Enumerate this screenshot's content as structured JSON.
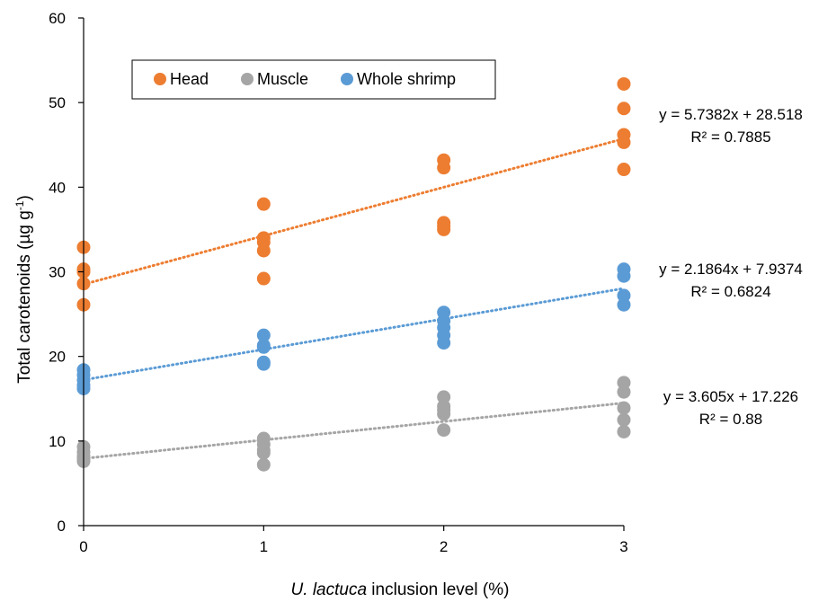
{
  "chart_data": {
    "type": "scatter",
    "xlabel_italic": "U. lactuca",
    "xlabel_rest": " inclusion level (%)",
    "ylabel_main": "Total carotenoids (µg g",
    "ylabel_sup": "-1",
    "ylabel_close": ")",
    "xlim": [
      0,
      3
    ],
    "ylim": [
      0,
      60
    ],
    "xticks": [
      0,
      1,
      2,
      3
    ],
    "yticks": [
      0,
      10,
      20,
      30,
      40,
      50,
      60
    ],
    "grid": false,
    "legend_position": "top-left",
    "series": [
      {
        "name": "Head",
        "color": "#ED7D31",
        "points": [
          [
            0,
            32.9
          ],
          [
            0,
            30.3
          ],
          [
            0,
            30.0
          ],
          [
            0,
            28.6
          ],
          [
            0,
            26.1
          ],
          [
            1,
            38.0
          ],
          [
            1,
            34.0
          ],
          [
            1,
            33.5
          ],
          [
            1,
            32.5
          ],
          [
            1,
            29.2
          ],
          [
            2,
            43.2
          ],
          [
            2,
            42.3
          ],
          [
            2,
            35.8
          ],
          [
            2,
            35.4
          ],
          [
            2,
            35.0
          ],
          [
            3,
            52.2
          ],
          [
            3,
            49.3
          ],
          [
            3,
            46.2
          ],
          [
            3,
            45.3
          ],
          [
            3,
            42.1
          ]
        ],
        "trendline": {
          "slope": 5.7382,
          "intercept": 28.518
        },
        "equation": "y = 5.7382x + 28.518",
        "r2": "R² = 0.7885"
      },
      {
        "name": "Muscle",
        "color": "#A5A5A5",
        "points": [
          [
            0,
            9.3
          ],
          [
            0,
            8.7
          ],
          [
            0,
            8.2
          ],
          [
            0,
            7.9
          ],
          [
            0,
            7.6
          ],
          [
            1,
            10.3
          ],
          [
            1,
            9.6
          ],
          [
            1,
            8.9
          ],
          [
            1,
            8.6
          ],
          [
            1,
            7.2
          ],
          [
            2,
            15.2
          ],
          [
            2,
            14.1
          ],
          [
            2,
            13.7
          ],
          [
            2,
            13.2
          ],
          [
            2,
            11.3
          ],
          [
            3,
            16.9
          ],
          [
            3,
            15.8
          ],
          [
            3,
            13.9
          ],
          [
            3,
            12.5
          ],
          [
            3,
            11.1
          ]
        ],
        "trendline": {
          "slope": 2.1864,
          "intercept": 7.9374
        },
        "equation": "y = 2.1864x + 7.9374",
        "r2": "R² = 0.6824"
      },
      {
        "name": "Whole shrimp",
        "color": "#5B9BD5",
        "points": [
          [
            0,
            18.4
          ],
          [
            0,
            17.8
          ],
          [
            0,
            17.2
          ],
          [
            0,
            16.6
          ],
          [
            0,
            16.2
          ],
          [
            1,
            22.5
          ],
          [
            1,
            21.3
          ],
          [
            1,
            21.1
          ],
          [
            1,
            19.3
          ],
          [
            1,
            19.1
          ],
          [
            2,
            25.2
          ],
          [
            2,
            24.2
          ],
          [
            2,
            23.4
          ],
          [
            2,
            22.5
          ],
          [
            2,
            21.6
          ],
          [
            3,
            30.3
          ],
          [
            3,
            29.5
          ],
          [
            3,
            27.2
          ],
          [
            3,
            26.1
          ]
        ],
        "trendline": {
          "slope": 3.605,
          "intercept": 17.226
        },
        "equation": "y = 3.605x + 17.226",
        "r2": "R² = 0.88"
      }
    ]
  }
}
